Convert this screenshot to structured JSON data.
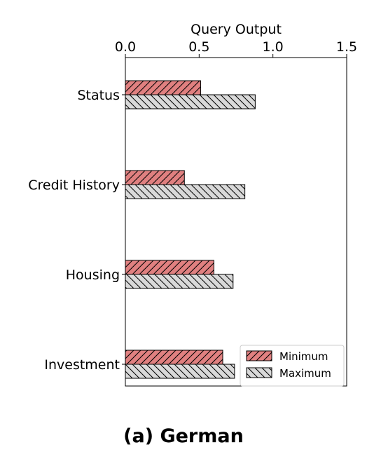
{
  "caption": "(a) German",
  "chart_data": {
    "type": "bar",
    "orientation": "horizontal",
    "categories": [
      "Status",
      "Credit History",
      "Housing",
      "Investment"
    ],
    "series": [
      {
        "name": "Minimum",
        "values": [
          0.51,
          0.4,
          0.6,
          0.66
        ],
        "color": "#e08080",
        "hatch": "forward-diagonal"
      },
      {
        "name": "Maximum",
        "values": [
          0.88,
          0.81,
          0.73,
          0.74
        ],
        "color": "#d9d9d9",
        "hatch": "back-diagonal"
      }
    ],
    "xlabel": "Query Output",
    "xaxis_position": "top",
    "xlim": [
      0,
      1.5
    ],
    "xticks": [
      "0.0",
      "0.5",
      "1.0",
      "1.5"
    ],
    "grid": false,
    "legend_position": "bottom-right"
  }
}
